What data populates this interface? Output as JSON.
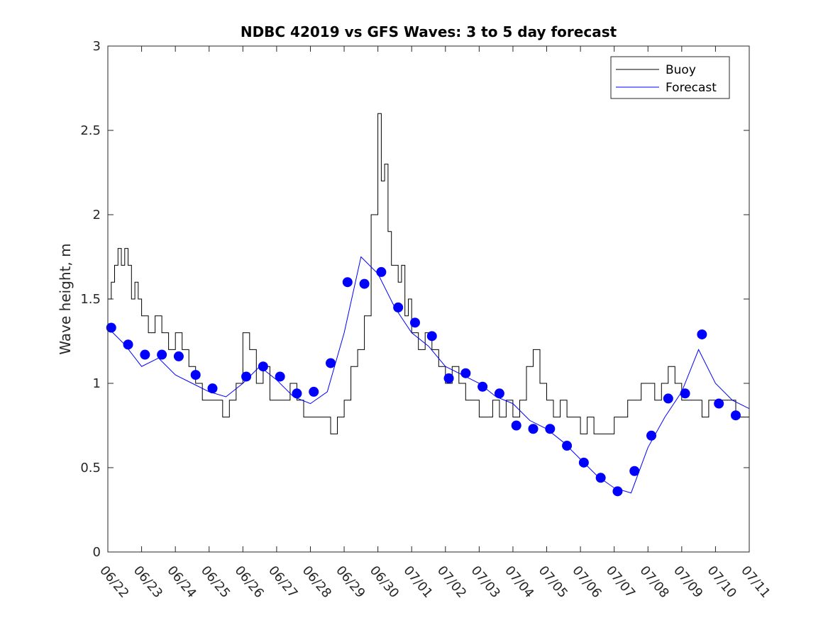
{
  "chart_data": {
    "type": "line",
    "title": "NDBC 42019 vs GFS Waves: 3 to 5 day forecast",
    "xlabel": "",
    "ylabel": "Wave height, m",
    "ylim": [
      0,
      3
    ],
    "xlim": [
      0,
      19
    ],
    "x_tick_labels": [
      "06/22",
      "06/23",
      "06/24",
      "06/25",
      "06/26",
      "06/27",
      "06/28",
      "06/29",
      "06/30",
      "07/01",
      "07/02",
      "07/03",
      "07/04",
      "07/05",
      "07/06",
      "07/07",
      "07/08",
      "07/09",
      "07/10",
      "07/11"
    ],
    "y_ticks": [
      0,
      0.5,
      1,
      1.5,
      2,
      2.5,
      3
    ],
    "y_tick_labels": [
      "0",
      "0.5",
      "1",
      "1.5",
      "2",
      "2.5",
      "3"
    ],
    "legend": {
      "position": "top-right",
      "entries": [
        "Buoy",
        "Forecast"
      ]
    },
    "colors": {
      "buoy": "#000000",
      "forecast": "#0000ff",
      "markers": "#0000ff"
    },
    "series": [
      {
        "name": "Buoy",
        "x": [
          0.0,
          0.1,
          0.2,
          0.3,
          0.4,
          0.5,
          0.6,
          0.7,
          0.8,
          0.9,
          1.0,
          1.2,
          1.4,
          1.6,
          1.8,
          2.0,
          2.2,
          2.4,
          2.6,
          2.8,
          3.0,
          3.2,
          3.4,
          3.6,
          3.8,
          4.0,
          4.2,
          4.4,
          4.6,
          4.8,
          5.0,
          5.2,
          5.4,
          5.6,
          5.8,
          6.0,
          6.2,
          6.4,
          6.6,
          6.8,
          7.0,
          7.2,
          7.4,
          7.6,
          7.8,
          8.0,
          8.1,
          8.2,
          8.3,
          8.4,
          8.5,
          8.6,
          8.7,
          8.8,
          8.9,
          9.0,
          9.2,
          9.4,
          9.6,
          9.8,
          10.0,
          10.2,
          10.4,
          10.6,
          10.8,
          11.0,
          11.2,
          11.4,
          11.6,
          11.8,
          12.0,
          12.2,
          12.4,
          12.6,
          12.8,
          13.0,
          13.2,
          13.4,
          13.6,
          13.8,
          14.0,
          14.2,
          14.4,
          14.6,
          14.8,
          15.0,
          15.2,
          15.4,
          15.6,
          15.8,
          16.0,
          16.2,
          16.4,
          16.6,
          16.8,
          17.0,
          17.2,
          17.4,
          17.6,
          17.8,
          18.0,
          18.2,
          18.4,
          18.6,
          18.8,
          19.0
        ],
        "values": [
          1.5,
          1.6,
          1.7,
          1.8,
          1.7,
          1.8,
          1.7,
          1.5,
          1.6,
          1.5,
          1.4,
          1.3,
          1.4,
          1.3,
          1.2,
          1.3,
          1.2,
          1.1,
          1.0,
          0.9,
          0.9,
          0.9,
          0.8,
          0.9,
          1.0,
          1.3,
          1.2,
          1.0,
          1.1,
          0.9,
          0.9,
          0.9,
          1.0,
          0.9,
          0.8,
          0.8,
          0.8,
          0.8,
          0.7,
          0.8,
          0.9,
          1.1,
          1.2,
          1.4,
          2.0,
          2.6,
          2.2,
          2.3,
          1.9,
          1.7,
          1.7,
          1.6,
          1.7,
          1.4,
          1.5,
          1.3,
          1.2,
          1.3,
          1.2,
          1.1,
          1.0,
          1.1,
          1.0,
          0.9,
          0.9,
          0.8,
          0.8,
          0.9,
          0.8,
          0.9,
          0.8,
          0.9,
          1.1,
          1.2,
          1.0,
          0.9,
          0.8,
          0.9,
          0.8,
          0.8,
          0.7,
          0.8,
          0.7,
          0.7,
          0.7,
          0.8,
          0.8,
          0.9,
          0.9,
          1.0,
          1.0,
          0.9,
          1.0,
          1.1,
          1.0,
          0.9,
          0.9,
          0.9,
          0.8,
          0.9,
          0.9,
          0.9,
          0.9,
          0.8,
          0.8,
          0.8
        ]
      },
      {
        "name": "Forecast",
        "x": [
          0.0,
          0.5,
          1.0,
          1.5,
          2.0,
          2.5,
          3.0,
          3.5,
          4.0,
          4.5,
          5.0,
          5.5,
          6.0,
          6.5,
          7.0,
          7.5,
          8.0,
          8.5,
          9.0,
          9.5,
          10.0,
          10.5,
          11.0,
          11.5,
          12.0,
          12.5,
          13.0,
          13.5,
          14.0,
          14.5,
          15.0,
          15.5,
          16.0,
          16.5,
          17.0,
          17.5,
          18.0,
          18.5,
          19.0
        ],
        "values": [
          1.33,
          1.23,
          1.1,
          1.15,
          1.05,
          1.0,
          0.95,
          0.92,
          1.0,
          1.1,
          1.02,
          0.92,
          0.88,
          0.95,
          1.3,
          1.75,
          1.65,
          1.45,
          1.3,
          1.22,
          1.1,
          1.05,
          1.0,
          0.92,
          0.88,
          0.78,
          0.73,
          0.65,
          0.55,
          0.45,
          0.38,
          0.35,
          0.62,
          0.8,
          0.95,
          1.2,
          1.0,
          0.9,
          0.85
        ]
      }
    ],
    "forecast_markers": {
      "x": [
        0.1,
        0.6,
        1.1,
        1.6,
        2.1,
        2.6,
        3.1,
        4.1,
        4.6,
        5.1,
        5.6,
        6.1,
        6.6,
        7.1,
        7.6,
        8.1,
        8.6,
        9.1,
        9.6,
        10.1,
        10.6,
        11.1,
        11.6,
        12.1,
        12.6,
        13.1,
        13.6,
        14.1,
        14.6,
        15.1,
        15.6,
        16.1,
        16.6,
        17.1,
        17.6,
        18.1,
        18.6
      ],
      "values": [
        1.33,
        1.23,
        1.17,
        1.17,
        1.16,
        1.05,
        0.97,
        1.04,
        1.1,
        1.04,
        0.94,
        0.95,
        1.12,
        1.6,
        1.59,
        1.66,
        1.45,
        1.36,
        1.28,
        1.03,
        1.06,
        0.98,
        0.94,
        0.75,
        0.73,
        0.73,
        0.63,
        0.53,
        0.44,
        0.36,
        0.48,
        0.69,
        0.91,
        0.94,
        1.29,
        0.88,
        0.81
      ]
    }
  }
}
